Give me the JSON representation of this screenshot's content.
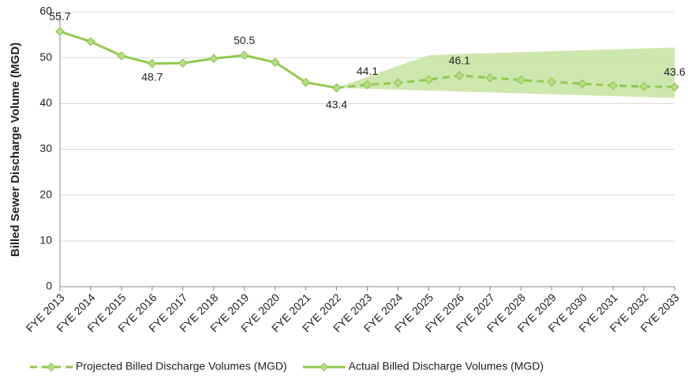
{
  "chart_data": {
    "type": "line",
    "ylabel": "Billed Sewer Discharge Volume (MGD)",
    "categories": [
      "FYE 2013",
      "FYE 2014",
      "FYE 2015",
      "FYE 2016",
      "FYE 2017",
      "FYE 2018",
      "FYE 2019",
      "FYE 2020",
      "FYE 2021",
      "FYE 2022",
      "FYE 2023",
      "FYE 2024",
      "FYE 2025",
      "FYE 2026",
      "FYE 2027",
      "FYE 2028",
      "FYE 2029",
      "FYE 2030",
      "FYE 2031",
      "FYE 2032",
      "FYE 2033"
    ],
    "series": [
      {
        "name": "Projected Billed Discharge Volumes (MGD)",
        "color": "#92c84e",
        "dashed": true,
        "values": [
          null,
          null,
          null,
          null,
          null,
          null,
          null,
          null,
          null,
          43.4,
          44.1,
          44.5,
          45.2,
          46.1,
          45.6,
          45.1,
          44.7,
          44.3,
          43.9,
          43.7,
          43.6
        ]
      },
      {
        "name": "Actual Billed Discharge Volumes (MGD)",
        "color": "#92c84e",
        "dashed": false,
        "values": [
          55.7,
          53.5,
          50.4,
          48.7,
          48.8,
          49.8,
          50.5,
          49.0,
          44.6,
          43.4,
          null,
          null,
          null,
          null,
          null,
          null,
          null,
          null,
          null,
          null,
          null
        ]
      }
    ],
    "band": {
      "color": "#c5e3a0",
      "upper": [
        null,
        null,
        null,
        null,
        null,
        null,
        null,
        null,
        null,
        43.4,
        45.8,
        48.2,
        50.5,
        50.8,
        51.0,
        51.2,
        51.4,
        51.6,
        51.8,
        52.0,
        52.2
      ],
      "lower": [
        null,
        null,
        null,
        null,
        null,
        null,
        null,
        null,
        null,
        43.4,
        43.2,
        43.0,
        42.8,
        42.6,
        42.4,
        42.2,
        42.0,
        41.8,
        41.6,
        41.4,
        41.2
      ]
    },
    "ylim": [
      0,
      60
    ],
    "yticks": [
      0,
      10,
      20,
      30,
      40,
      50,
      60
    ],
    "grid": true,
    "legend": "bottom"
  }
}
